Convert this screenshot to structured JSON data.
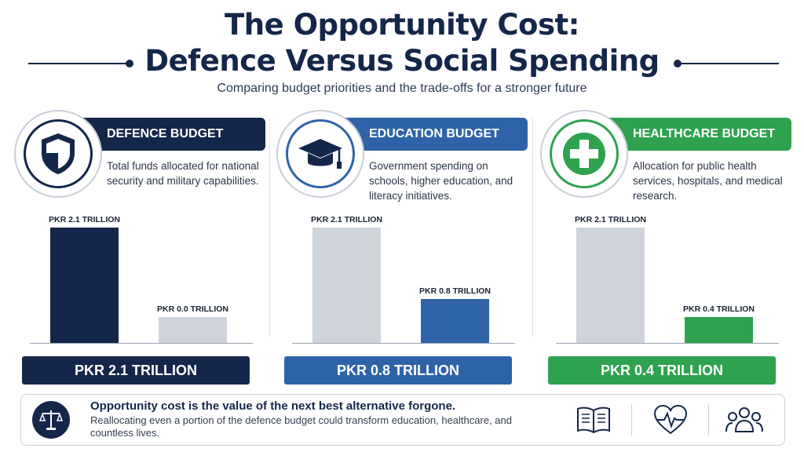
{
  "header": {
    "title_line1": "The Opportunity Cost:",
    "title_line2": "Defence Versus Social Spending",
    "subtitle": "Comparing budget priorities and the trade-offs for a stronger future"
  },
  "colors": {
    "navy": "#14274a",
    "blue": "#2f63a8",
    "green": "#2ea24f",
    "gray_bar": "#cfd3da"
  },
  "panels": [
    {
      "banner": "DEFENCE BUDGET",
      "icon": "shield-icon",
      "description": "Total funds allocated for national security and military capabilities.",
      "total": "PKR 2.1 TRILLION"
    },
    {
      "banner": "EDUCATION BUDGET",
      "icon": "graduation-cap-icon",
      "description": "Government spending on schools, higher education, and literacy initiatives.",
      "total": "PKR 0.8 TRILLION"
    },
    {
      "banner": "HEALTHCARE BUDGET",
      "icon": "medical-cross-icon",
      "description": "Allocation for public health services, hospitals, and medical research.",
      "total": "PKR 0.4 TRILLION"
    }
  ],
  "chart_data": [
    {
      "type": "bar",
      "categories": [
        "",
        ""
      ],
      "values": [
        2.1,
        0.0
      ],
      "data_labels": [
        "PKR 2.1 TRILLION",
        "PKR 0.0 TRILLION"
      ],
      "ylim": [
        0,
        2.1
      ],
      "grid": false
    },
    {
      "type": "bar",
      "categories": [
        "",
        ""
      ],
      "values": [
        2.1,
        0.8
      ],
      "data_labels": [
        "PKR 2.1 TRILLION",
        "PKR 0.8 TRILLION"
      ],
      "ylim": [
        0,
        2.1
      ],
      "grid": false
    },
    {
      "type": "bar",
      "categories": [
        "",
        ""
      ],
      "values": [
        2.1,
        0.4
      ],
      "data_labels": [
        "PKR 2.1 TRILLION",
        "PKR 0.4 TRILLION"
      ],
      "ylim": [
        0,
        2.1
      ],
      "grid": false
    }
  ],
  "footer": {
    "headline": "Opportunity cost is the value of the next best alternative forgone.",
    "body": "Reallocating even a portion of the defence budget could transform education, healthcare, and countless lives.",
    "icons": [
      "book-icon",
      "heartbeat-icon",
      "people-icon"
    ]
  }
}
